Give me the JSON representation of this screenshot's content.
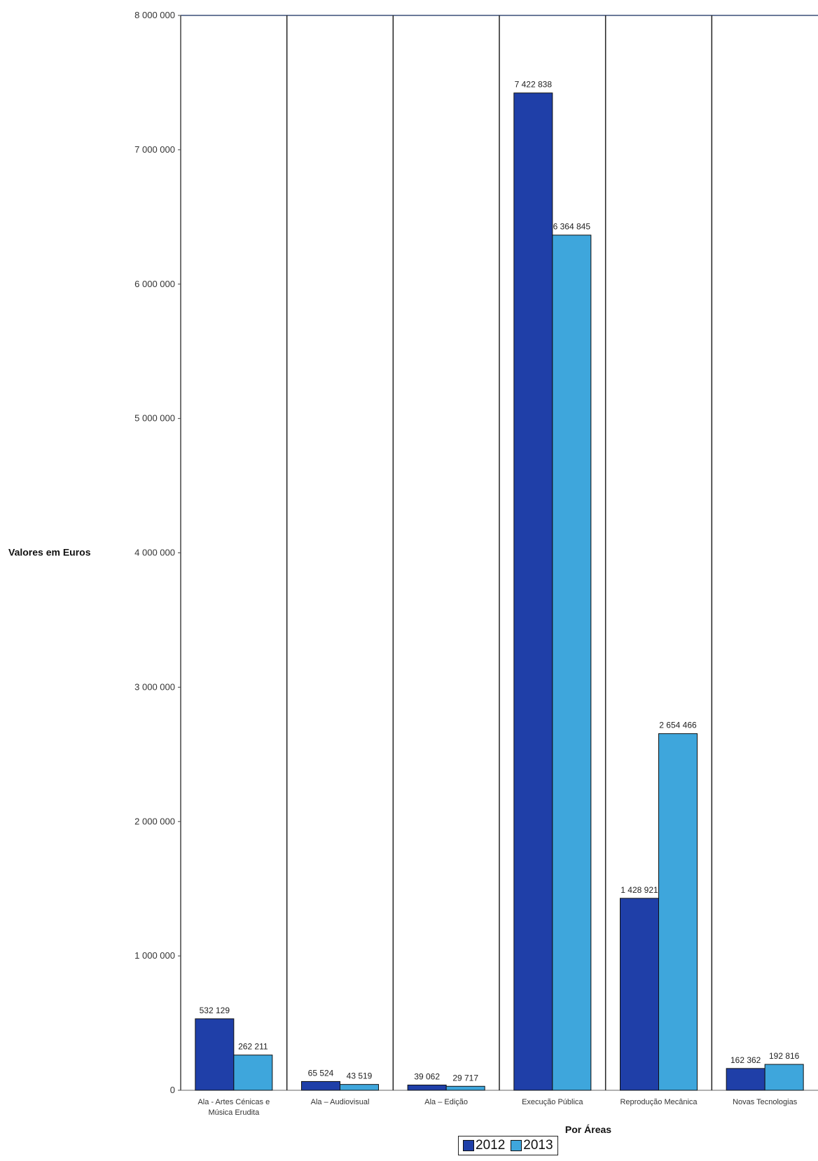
{
  "chart_data": {
    "type": "bar",
    "ylabel": "Valores em Euros",
    "xlabel": "Por Áreas",
    "ylim": [
      0,
      8000000
    ],
    "yticks": [
      0,
      1000000,
      2000000,
      3000000,
      4000000,
      5000000,
      6000000,
      7000000,
      8000000
    ],
    "ytick_labels": [
      "0",
      "1 000 000",
      "2 000 000",
      "3 000 000",
      "4 000 000",
      "5 000 000",
      "6 000 000",
      "7 000 000",
      "8 000 000"
    ],
    "categories": [
      [
        "Ala - Artes Cénicas e",
        "Música Erudita"
      ],
      [
        "Ala – Audiovisual"
      ],
      [
        "Ala – Edição"
      ],
      [
        "Execução Pública"
      ],
      [
        "Reprodução Mecânica"
      ],
      [
        "Novas Tecnologias"
      ]
    ],
    "series": [
      {
        "name": "2012",
        "color": "#1f3fa8",
        "values": [
          532129,
          65524,
          39062,
          7422838,
          1428921,
          162362
        ],
        "labels": [
          "532 129",
          "65 524",
          "39 062",
          "7 422 838",
          "1 428 921",
          "162 362"
        ]
      },
      {
        "name": "2013",
        "color": "#3ea6dc",
        "values": [
          262211,
          43519,
          29717,
          6364845,
          2654466,
          192816
        ],
        "labels": [
          "262 211",
          "43 519",
          "29 717",
          "6 364 845",
          "2 654 466",
          "192 816"
        ]
      }
    ],
    "grid": "vertical separators between categories",
    "legend": "bottom-center"
  }
}
